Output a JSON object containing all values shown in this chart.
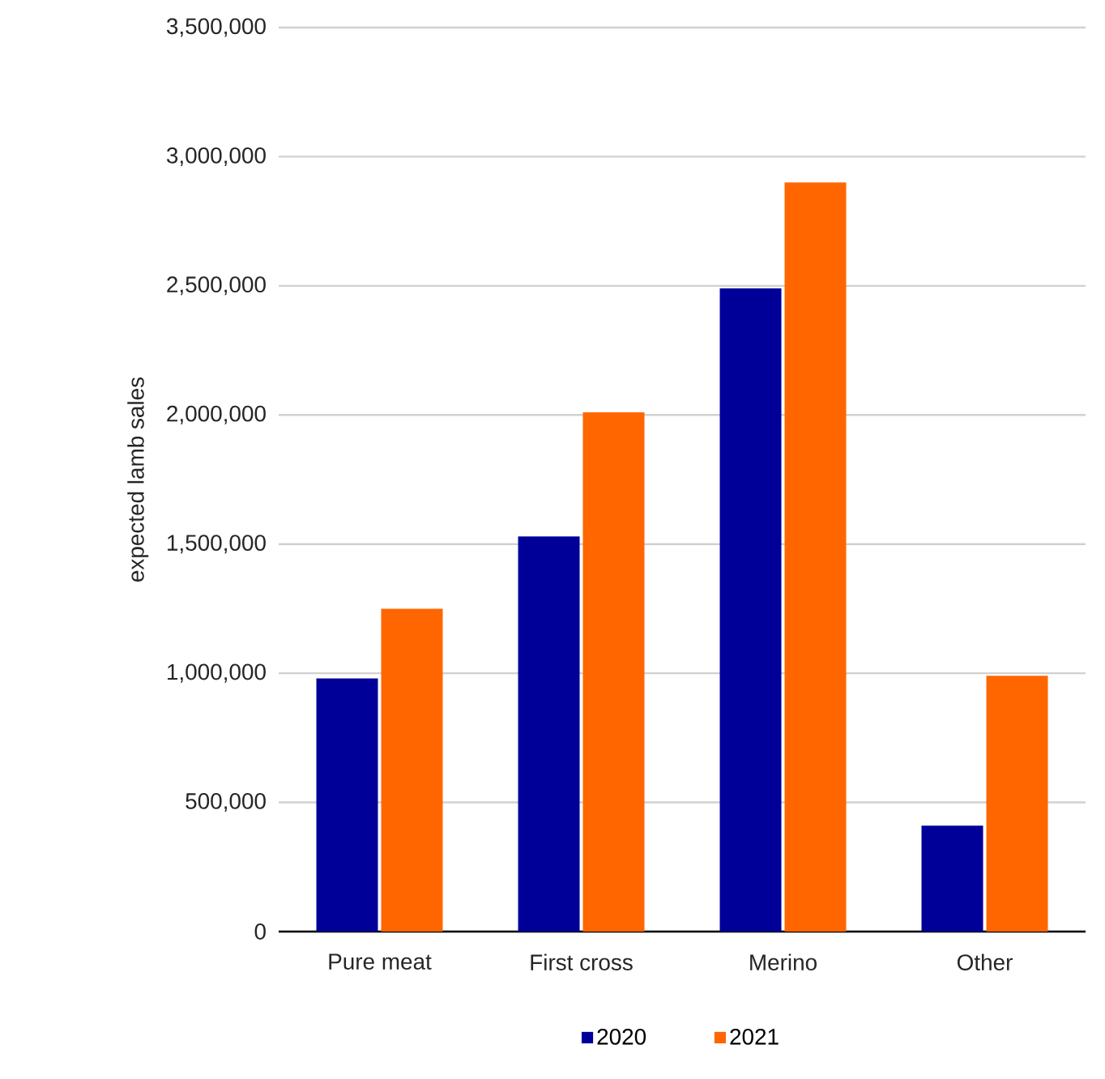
{
  "chart_data": {
    "type": "bar",
    "ylabel": "expected lamb sales",
    "categories": [
      "Pure meat",
      "First cross",
      "Merino",
      "Other"
    ],
    "series": [
      {
        "name": "2020",
        "color": "#000099",
        "values": [
          980000,
          1530000,
          2490000,
          410000
        ]
      },
      {
        "name": "2021",
        "color": "#ff6600",
        "values": [
          1250000,
          2010000,
          2900000,
          990000
        ]
      }
    ],
    "ylim": [
      0,
      3500000
    ],
    "yticks": [
      {
        "value": 0,
        "label": "0"
      },
      {
        "value": 500000,
        "label": "500,000"
      },
      {
        "value": 1000000,
        "label": "1,000,000"
      },
      {
        "value": 1500000,
        "label": "1,500,000"
      },
      {
        "value": 2000000,
        "label": "2,000,000"
      },
      {
        "value": 2500000,
        "label": "2,500,000"
      },
      {
        "value": 3000000,
        "label": "3,000,000"
      },
      {
        "value": 3500000,
        "label": "3,500,000"
      }
    ],
    "grid": "y",
    "legend": "bottom"
  }
}
